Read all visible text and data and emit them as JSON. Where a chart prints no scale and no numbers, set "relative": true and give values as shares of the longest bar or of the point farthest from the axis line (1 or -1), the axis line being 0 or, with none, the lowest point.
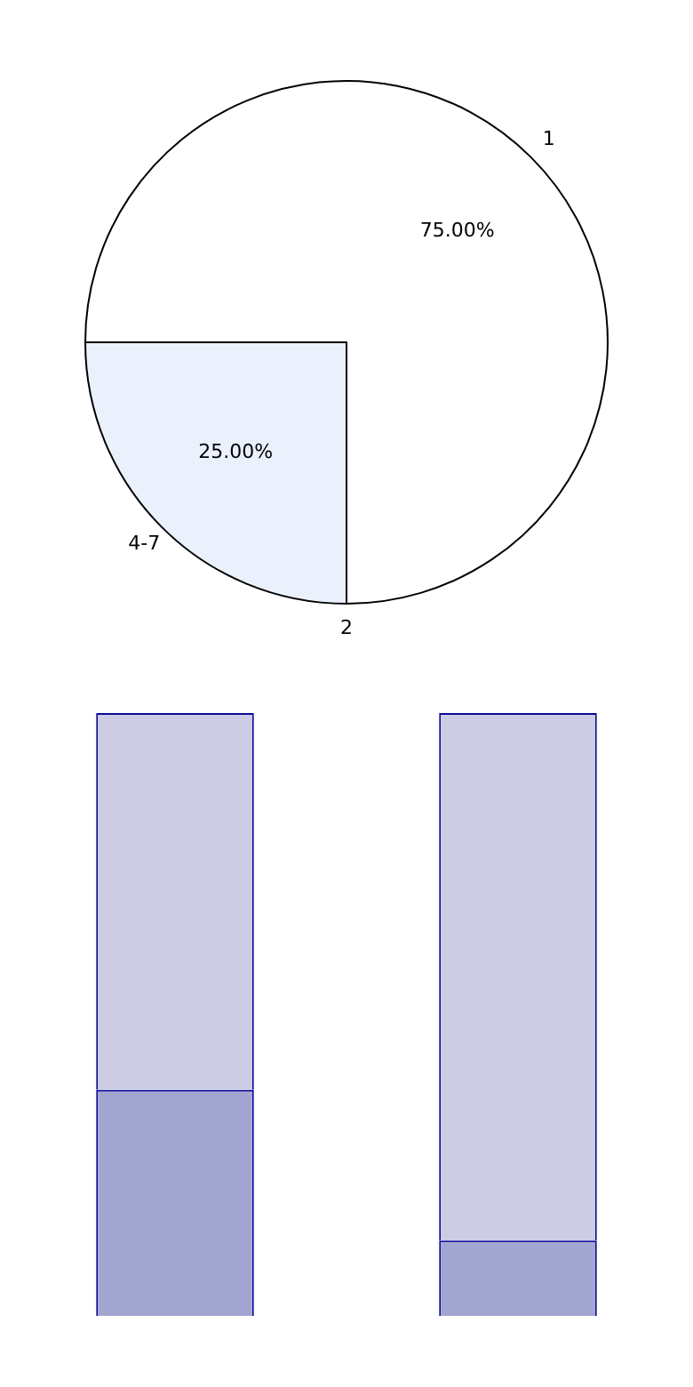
{
  "chart_data": [
    {
      "type": "pie",
      "categories": [
        "1",
        "2",
        "4-7"
      ],
      "values": [
        75,
        0,
        25
      ],
      "colors": [
        "#ffffff",
        "#dde3f5",
        "#ebf0fd"
      ],
      "value_labels": [
        "75.00%",
        null,
        "25.00%"
      ]
    },
    {
      "type": "bar",
      "categories": [
        null,
        null
      ],
      "stacked": true,
      "relative": true,
      "series": [
        {
          "color": "#a3a5d1",
          "values": [
            0.375,
            0.125
          ]
        },
        {
          "color": "#cccde5",
          "values": [
            0.625,
            0.875
          ]
        }
      ]
    }
  ]
}
